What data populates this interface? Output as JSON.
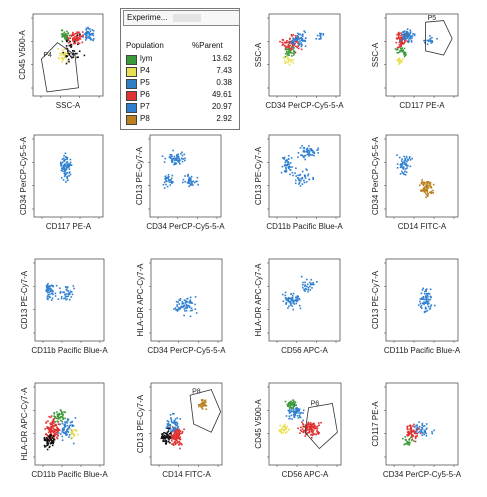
{
  "legend": {
    "title": "Experime...",
    "col_population": "Population",
    "col_parent": "%Parent",
    "rows": [
      {
        "name": "lym",
        "value": "13.62",
        "color": "#3a9a3a"
      },
      {
        "name": "P4",
        "value": "7.43",
        "color": "#e8e050"
      },
      {
        "name": "P5",
        "value": "0.38",
        "color": "#2e7fc8"
      },
      {
        "name": "P6",
        "value": "49.61",
        "color": "#e03030"
      },
      {
        "name": "P7",
        "value": "20.97",
        "color": "#2f7fd0"
      },
      {
        "name": "P8",
        "value": "2.92",
        "color": "#b8801e"
      }
    ]
  },
  "chart_data": [
    {
      "type": "scatter",
      "xlabel": "SSC-A",
      "ylabel": "CD45 V500-A",
      "gates": [
        "P4"
      ],
      "colors": [
        "#3a9a3a",
        "#e03030",
        "#2f7fd0",
        "#e8e050",
        "#111111"
      ]
    },
    {
      "type": "scatter",
      "xlabel": "CD34 PerCP-Cy5-5-A",
      "ylabel": "SSC-A",
      "gates": [],
      "colors": [
        "#e03030",
        "#2f7fd0",
        "#3a9a3a",
        "#e8e050"
      ]
    },
    {
      "type": "scatter",
      "xlabel": "CD117 PE-A",
      "ylabel": "SSC-A",
      "gates": [
        "P5"
      ],
      "colors": [
        "#e03030",
        "#2f7fd0",
        "#3a9a3a",
        "#e8e050"
      ]
    },
    {
      "type": "scatter",
      "xlabel": "CD117 PE-A",
      "ylabel": "CD34 PerCP-Cy5-5-A",
      "gates": [],
      "colors": [
        "#2f7fd0"
      ]
    },
    {
      "type": "scatter",
      "xlabel": "CD34 PerCP-Cy5-5-A",
      "ylabel": "CD13 PE-Cy7-A",
      "gates": [],
      "colors": [
        "#2f7fd0"
      ]
    },
    {
      "type": "scatter",
      "xlabel": "CD11b Pacific Blue-A",
      "ylabel": "CD13 PE-Cy7-A",
      "gates": [],
      "colors": [
        "#2f7fd0"
      ]
    },
    {
      "type": "scatter",
      "xlabel": "CD14 FITC-A",
      "ylabel": "CD34 PerCP-Cy5-5-A",
      "gates": [],
      "colors": [
        "#2f7fd0",
        "#b8801e"
      ]
    },
    {
      "type": "scatter",
      "xlabel": "CD11b Pacific Blue-A",
      "ylabel": "CD13 PE-Cy7-A",
      "gates": [],
      "colors": [
        "#2f7fd0"
      ]
    },
    {
      "type": "scatter",
      "xlabel": "CD34 PerCP-Cy5-5-A",
      "ylabel": "HLA-DR APC-Cy7-A",
      "gates": [],
      "colors": [
        "#2f7fd0"
      ]
    },
    {
      "type": "scatter",
      "xlabel": "CD56 APC-A",
      "ylabel": "HLA-DR APC-Cy7-A",
      "gates": [],
      "colors": [
        "#2f7fd0"
      ]
    },
    {
      "type": "scatter",
      "xlabel": "CD11b Pacific Blue-A",
      "ylabel": "CD13 PE-Cy7-A",
      "gates": [],
      "colors": [
        "#2f7fd0"
      ]
    },
    {
      "type": "scatter",
      "xlabel": "CD11b Pacific Blue-A",
      "ylabel": "HLA-DR APC-Cy7-A",
      "gates": [],
      "colors": [
        "#e03030",
        "#2f7fd0",
        "#3a9a3a",
        "#111111",
        "#e8e050"
      ]
    },
    {
      "type": "scatter",
      "xlabel": "CD14 FITC-A",
      "ylabel": "CD13 PE-Cy7-A",
      "gates": [
        "P8"
      ],
      "colors": [
        "#e03030",
        "#2f7fd0",
        "#111111",
        "#b8801e"
      ]
    },
    {
      "type": "scatter",
      "xlabel": "CD56 APC-A",
      "ylabel": "CD45 V500-A",
      "gates": [
        "P6"
      ],
      "colors": [
        "#e03030",
        "#2f7fd0",
        "#3a9a3a",
        "#e8e050"
      ]
    },
    {
      "type": "scatter",
      "xlabel": "CD34 PerCP-Cy5-5-A",
      "ylabel": "CD117 PE-A",
      "gates": [],
      "colors": [
        "#e03030",
        "#2f7fd0",
        "#3a9a3a"
      ]
    }
  ]
}
